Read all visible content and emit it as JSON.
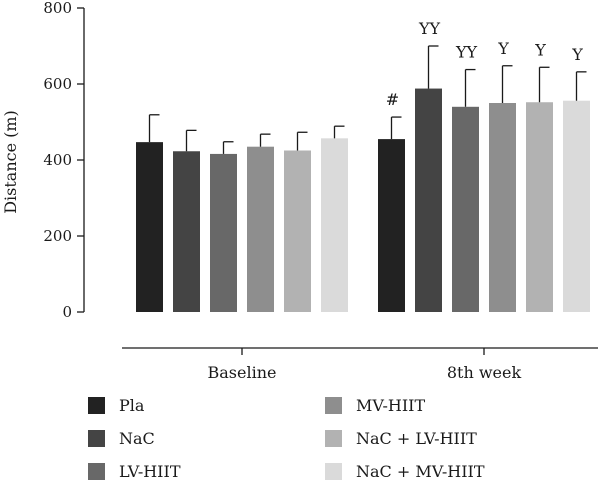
{
  "chart_data": {
    "type": "bar",
    "ylabel": "Distance (m)",
    "ylim": [
      0,
      800
    ],
    "yticks": [
      0,
      200,
      400,
      600,
      800
    ],
    "grid": false,
    "legend_placement": "bottom",
    "categories": [
      "Baseline",
      "8th week"
    ],
    "series": [
      {
        "name": "Pla",
        "color": "#222222",
        "values": [
          447,
          455
        ],
        "errors": [
          72,
          58
        ],
        "annotations": [
          "",
          "#"
        ]
      },
      {
        "name": "NaC",
        "color": "#444444",
        "values": [
          423,
          588
        ],
        "errors": [
          55,
          112
        ],
        "annotations": [
          "",
          "YY"
        ]
      },
      {
        "name": "LV-HIIT",
        "color": "#686868",
        "values": [
          416,
          540
        ],
        "errors": [
          32,
          98
        ],
        "annotations": [
          "",
          "YY"
        ]
      },
      {
        "name": "MV-HIIT",
        "color": "#8e8e8e",
        "values": [
          435,
          550
        ],
        "errors": [
          33,
          98
        ],
        "annotations": [
          "",
          "Y"
        ]
      },
      {
        "name": "NaC + LV-HIIT",
        "color": "#b2b2b2",
        "values": [
          425,
          552
        ],
        "errors": [
          48,
          92
        ],
        "annotations": [
          "",
          "Y"
        ]
      },
      {
        "name": "NaC + MV-HIIT",
        "color": "#dadada",
        "values": [
          457,
          556
        ],
        "errors": [
          32,
          76
        ],
        "annotations": [
          "",
          "Y"
        ]
      }
    ]
  }
}
